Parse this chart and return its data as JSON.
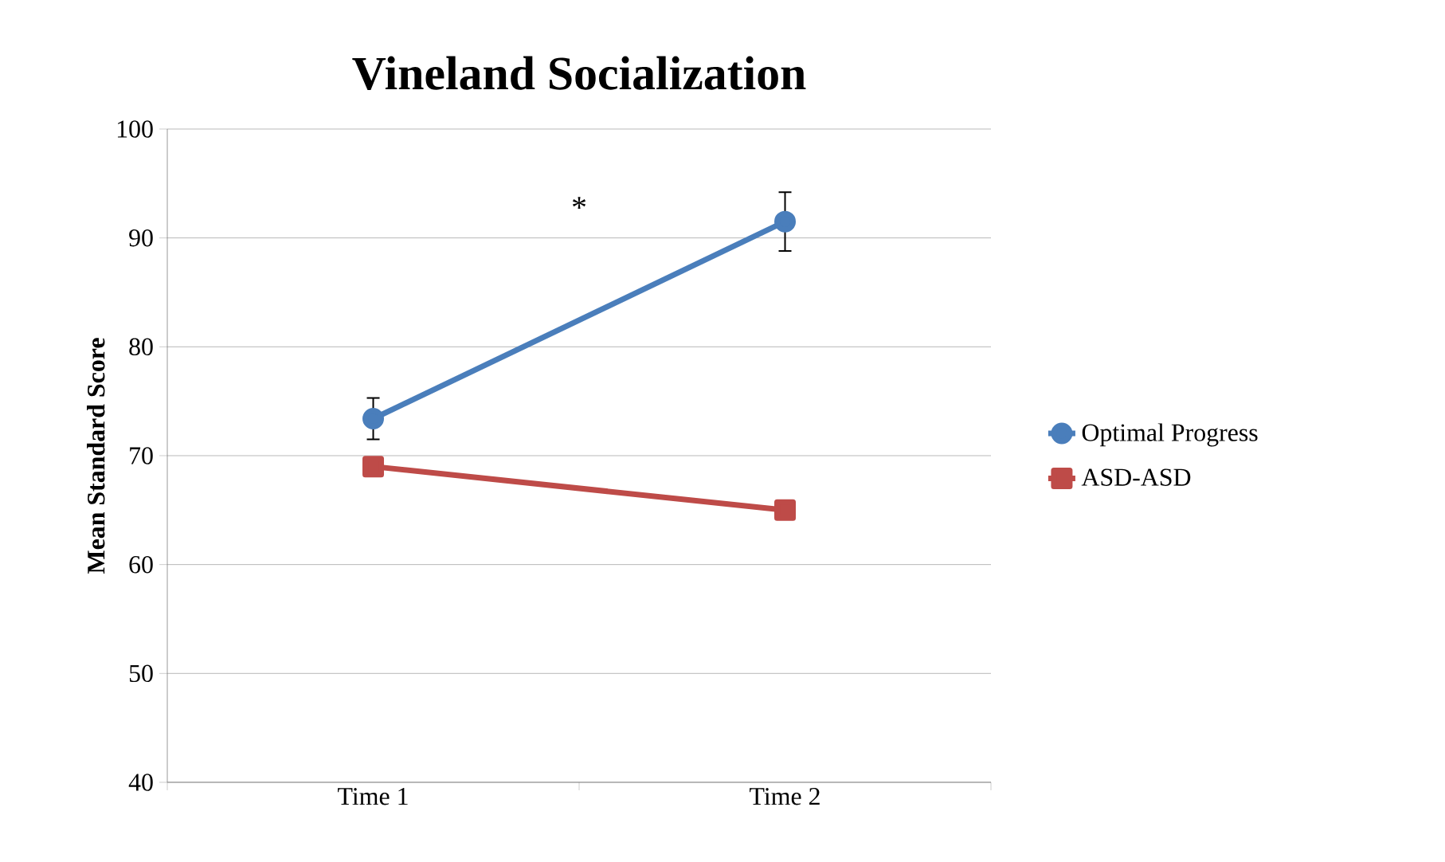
{
  "chart_data": {
    "type": "line",
    "title": "Vineland Socialization",
    "ylabel": "Mean Standard Score",
    "categories": [
      "Time 1",
      "Time 2"
    ],
    "series": [
      {
        "name": "Optimal Progress",
        "color": "#4a7ebb",
        "values": [
          73.4,
          91.5
        ],
        "errors": [
          1.9,
          2.7
        ],
        "marker": "circle"
      },
      {
        "name": "ASD-ASD",
        "color": "#be4b48",
        "values": [
          69.0,
          65.0
        ],
        "marker": "square"
      }
    ],
    "ylim": [
      40,
      100
    ],
    "yticks": [
      40,
      50,
      60,
      70,
      80,
      90,
      100
    ],
    "grid": "y",
    "legend": "right",
    "annotations": [
      "*"
    ]
  }
}
